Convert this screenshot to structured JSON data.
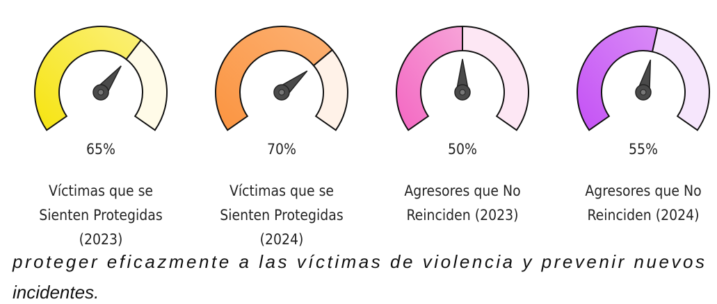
{
  "chart_data": {
    "type": "gauge",
    "categories": [
      [
        "Víctimas que se",
        "Sienten Protegidas",
        "(2023)"
      ],
      [
        "Víctimas que se",
        "Sienten Protegidas",
        "(2024)"
      ],
      [
        "Agresores que No",
        "Reinciden (2023)"
      ],
      [
        "Agresores que No",
        "Reinciden (2024)"
      ]
    ],
    "values": [
      65,
      70,
      50,
      55
    ],
    "value_labels": [
      "65%",
      "70%",
      "50%",
      "55%"
    ],
    "ylim": [
      0,
      100
    ],
    "colors": [
      [
        "#f6e40f",
        "#fbf07a"
      ],
      [
        "#fb9440",
        "#fcb173"
      ],
      [
        "#f367c2",
        "#f7a3d8"
      ],
      [
        "#c451f5",
        "#d98cf6"
      ]
    ],
    "track_colors": [
      "#fffbe8",
      "#fff2e8",
      "#fde7f4",
      "#f6e6fc"
    ]
  },
  "paragraph": [
    "proteger eficazmente a las víctimas de violencia y prevenir nuevos",
    "incidentes."
  ]
}
